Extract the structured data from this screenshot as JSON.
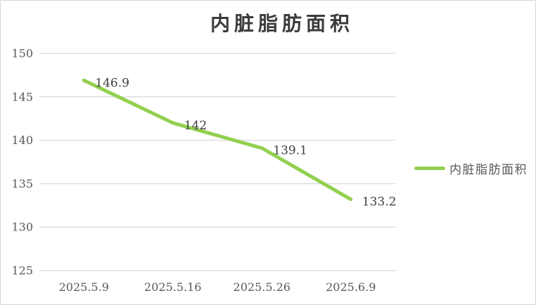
{
  "chart_data": {
    "type": "line",
    "title": "内脏脂肪面积",
    "categories": [
      "2025.5.9",
      "2025.5.16",
      "2025.5.26",
      "2025.6.9"
    ],
    "series": [
      {
        "name": "内脏脂肪面积",
        "values": [
          146.9,
          142,
          139.1,
          133.2
        ],
        "color": "#92D050"
      }
    ],
    "data_labels": [
      "146.9",
      "142",
      "139.1",
      "133.2"
    ],
    "y_ticks": [
      150,
      145,
      140,
      135,
      130,
      125
    ],
    "ylim": [
      125,
      150
    ],
    "xlabel": "",
    "ylabel": "",
    "grid": "horizontal",
    "legend_position": "right",
    "colors": {
      "line": "#92D050",
      "grid": "#dedede",
      "axis_text": "#595959",
      "data_label_text": "#404040",
      "title_text": "#3b3b3b",
      "background": "#ffffff",
      "border": "#d4d4d4"
    }
  }
}
